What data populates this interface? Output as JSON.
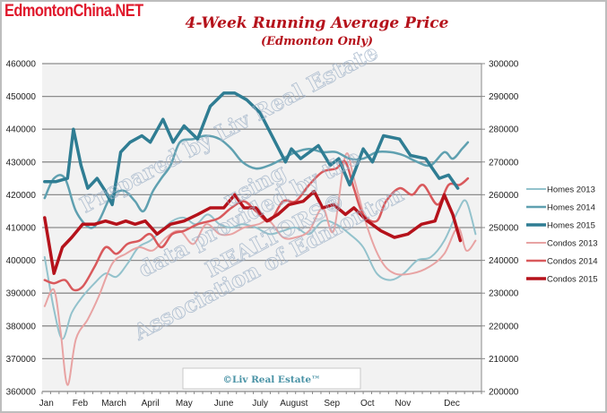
{
  "brand": "EdmontonChina.NET",
  "chart_data": {
    "type": "line",
    "title": "4-Week Running Average Price",
    "subtitle": "(Edmonton Only)",
    "xlabel": "",
    "x_unit": "week of year",
    "x_ticks": [
      "Jan",
      "Feb",
      "March",
      "April",
      "May",
      "June",
      "July",
      "August",
      "Sep",
      "Oct",
      "Nov",
      "Dec"
    ],
    "x_tick_weeks": [
      0.5,
      4.5,
      8.5,
      12.8,
      16.8,
      21.5,
      25.8,
      29.8,
      34.3,
      38.5,
      42.7,
      48.5
    ],
    "xlim": [
      0,
      52
    ],
    "y_left": {
      "ylim": [
        360000,
        460000
      ],
      "ticks": [
        "460000",
        "450000",
        "440000",
        "430000",
        "420000",
        "410000",
        "400000",
        "390000",
        "380000",
        "370000",
        "360000"
      ],
      "applies_to": "Homes"
    },
    "y_right": {
      "ylim": [
        200000,
        300000
      ],
      "ticks": [
        "300000",
        "290000",
        "280000",
        "270000",
        "260000",
        "250000",
        "240000",
        "230000",
        "220000",
        "210000",
        "200000"
      ],
      "applies_to": "Condos"
    },
    "grid": true,
    "legend_position": "right",
    "series": [
      {
        "name": "Homes 2013",
        "axis": "left",
        "color": "#93c2cc",
        "width": 2,
        "points": [
          [
            0.3,
            401000
          ],
          [
            1.4,
            385000
          ],
          [
            2.4,
            376000
          ],
          [
            3.5,
            384000
          ],
          [
            4.8,
            389000
          ],
          [
            6.2,
            393000
          ],
          [
            7.5,
            396000
          ],
          [
            8.8,
            395000
          ],
          [
            10.1,
            399000
          ],
          [
            11.4,
            404000
          ],
          [
            12.8,
            406000
          ],
          [
            14.1,
            409000
          ],
          [
            15.4,
            412000
          ],
          [
            16.8,
            413000
          ],
          [
            18.2,
            411000
          ],
          [
            19.6,
            414000
          ],
          [
            21.0,
            411000
          ],
          [
            22.4,
            410000
          ],
          [
            23.7,
            411000
          ],
          [
            25.3,
            410000
          ],
          [
            26.9,
            408000
          ],
          [
            28.5,
            409000
          ],
          [
            30.0,
            410000
          ],
          [
            31.6,
            408000
          ],
          [
            33.2,
            412000
          ],
          [
            34.8,
            411000
          ],
          [
            36.4,
            408000
          ],
          [
            38.0,
            404000
          ],
          [
            39.6,
            396000
          ],
          [
            41.2,
            394000
          ],
          [
            42.8,
            396000
          ],
          [
            44.4,
            400000
          ],
          [
            46.0,
            401000
          ],
          [
            47.6,
            406000
          ],
          [
            49.2,
            415000
          ],
          [
            50.2,
            418000
          ],
          [
            51.3,
            408000
          ]
        ]
      },
      {
        "name": "Homes 2014",
        "axis": "left",
        "color": "#5fa0b0",
        "width": 2.5,
        "points": [
          [
            0.3,
            419000
          ],
          [
            1.4,
            425000
          ],
          [
            2.7,
            425000
          ],
          [
            4.0,
            415000
          ],
          [
            5.6,
            410000
          ],
          [
            6.7,
            412000
          ],
          [
            8.0,
            419000
          ],
          [
            9.0,
            421000
          ],
          [
            9.9,
            421000
          ],
          [
            11.0,
            418000
          ],
          [
            12.0,
            415000
          ],
          [
            13.1,
            421000
          ],
          [
            14.1,
            425000
          ],
          [
            15.2,
            429000
          ],
          [
            16.3,
            436000
          ],
          [
            17.9,
            437000
          ],
          [
            19.4,
            438000
          ],
          [
            21.0,
            437000
          ],
          [
            22.4,
            434000
          ],
          [
            23.7,
            430000
          ],
          [
            25.3,
            428000
          ],
          [
            26.9,
            429000
          ],
          [
            28.5,
            431000
          ],
          [
            30.0,
            433000
          ],
          [
            31.6,
            434000
          ],
          [
            33.2,
            433000
          ],
          [
            34.8,
            433000
          ],
          [
            36.4,
            431000
          ],
          [
            38.0,
            431000
          ],
          [
            39.6,
            433000
          ],
          [
            41.2,
            433000
          ],
          [
            42.8,
            432000
          ],
          [
            44.4,
            430000
          ],
          [
            46.0,
            429000
          ],
          [
            47.6,
            433000
          ],
          [
            48.6,
            431000
          ],
          [
            49.7,
            434000
          ],
          [
            50.4,
            436000
          ]
        ]
      },
      {
        "name": "Homes 2015",
        "axis": "left",
        "color": "#2f7d93",
        "width": 3.5,
        "points": [
          [
            0.3,
            424000
          ],
          [
            1.6,
            424000
          ],
          [
            3.0,
            425000
          ],
          [
            3.7,
            440000
          ],
          [
            4.6,
            429000
          ],
          [
            5.4,
            422000
          ],
          [
            6.5,
            425000
          ],
          [
            7.5,
            421000
          ],
          [
            8.3,
            417000
          ],
          [
            9.3,
            433000
          ],
          [
            10.4,
            436000
          ],
          [
            11.8,
            438000
          ],
          [
            12.8,
            436000
          ],
          [
            14.3,
            443000
          ],
          [
            15.5,
            436000
          ],
          [
            16.8,
            441000
          ],
          [
            18.4,
            437000
          ],
          [
            19.9,
            447000
          ],
          [
            21.5,
            451000
          ],
          [
            22.8,
            451000
          ],
          [
            24.2,
            449000
          ],
          [
            25.8,
            445000
          ],
          [
            27.4,
            437000
          ],
          [
            28.8,
            430000
          ],
          [
            29.5,
            434000
          ],
          [
            30.6,
            431000
          ],
          [
            32.7,
            435000
          ],
          [
            34.1,
            429000
          ],
          [
            35.1,
            431000
          ],
          [
            36.4,
            423000
          ],
          [
            38.0,
            434000
          ],
          [
            39.1,
            430000
          ],
          [
            40.4,
            438000
          ],
          [
            42.3,
            437000
          ],
          [
            43.6,
            432000
          ],
          [
            45.4,
            431000
          ],
          [
            47.0,
            425000
          ],
          [
            48.1,
            426000
          ],
          [
            49.2,
            422000
          ]
        ]
      },
      {
        "name": "Condos 2013",
        "axis": "right",
        "color": "#e8a3a3",
        "width": 2,
        "points": [
          [
            0.3,
            226000
          ],
          [
            1.4,
            231000
          ],
          [
            2.2,
            218000
          ],
          [
            3.0,
            202000
          ],
          [
            4.0,
            216000
          ],
          [
            5.4,
            222000
          ],
          [
            6.7,
            229000
          ],
          [
            8.3,
            239000
          ],
          [
            9.9,
            242000
          ],
          [
            11.5,
            244000
          ],
          [
            13.1,
            243000
          ],
          [
            14.7,
            247000
          ],
          [
            16.3,
            249000
          ],
          [
            17.9,
            245000
          ],
          [
            19.4,
            251000
          ],
          [
            21.0,
            248000
          ],
          [
            22.4,
            248000
          ],
          [
            23.9,
            250000
          ],
          [
            25.6,
            251000
          ],
          [
            26.9,
            252000
          ],
          [
            28.5,
            247000
          ],
          [
            30.0,
            247000
          ],
          [
            31.6,
            249000
          ],
          [
            33.2,
            256000
          ],
          [
            34.5,
            249000
          ],
          [
            35.9,
            272000
          ],
          [
            36.9,
            265000
          ],
          [
            38.5,
            250000
          ],
          [
            40.1,
            240000
          ],
          [
            41.7,
            236000
          ],
          [
            43.8,
            236000
          ],
          [
            45.8,
            238000
          ],
          [
            47.6,
            242000
          ],
          [
            49.2,
            250000
          ],
          [
            50.2,
            243000
          ],
          [
            51.3,
            246000
          ]
        ]
      },
      {
        "name": "Condos 2014",
        "axis": "right",
        "color": "#d9595c",
        "width": 2.5,
        "points": [
          [
            0.3,
            234000
          ],
          [
            1.4,
            233000
          ],
          [
            2.7,
            234000
          ],
          [
            3.7,
            231000
          ],
          [
            4.8,
            232000
          ],
          [
            6.2,
            238000
          ],
          [
            7.5,
            244000
          ],
          [
            8.8,
            242000
          ],
          [
            10.1,
            245000
          ],
          [
            11.5,
            246000
          ],
          [
            12.8,
            248000
          ],
          [
            14.1,
            244000
          ],
          [
            15.4,
            248000
          ],
          [
            16.8,
            249000
          ],
          [
            18.4,
            251000
          ],
          [
            19.9,
            252000
          ],
          [
            21.0,
            253000
          ],
          [
            22.4,
            256000
          ],
          [
            23.9,
            258000
          ],
          [
            25.3,
            255000
          ],
          [
            26.9,
            252000
          ],
          [
            28.5,
            258000
          ],
          [
            30.0,
            258000
          ],
          [
            31.6,
            263000
          ],
          [
            33.2,
            267000
          ],
          [
            34.8,
            268000
          ],
          [
            35.9,
            270000
          ],
          [
            36.9,
            262000
          ],
          [
            38.0,
            254000
          ],
          [
            39.6,
            252000
          ],
          [
            40.7,
            258000
          ],
          [
            42.3,
            262000
          ],
          [
            43.8,
            260000
          ],
          [
            45.1,
            263000
          ],
          [
            46.8,
            257000
          ],
          [
            48.1,
            263000
          ],
          [
            49.4,
            263000
          ],
          [
            50.4,
            265000
          ]
        ]
      },
      {
        "name": "Condos 2015",
        "axis": "right",
        "color": "#b5121b",
        "width": 3.5,
        "points": [
          [
            0.3,
            253000
          ],
          [
            1.4,
            236000
          ],
          [
            2.4,
            244000
          ],
          [
            3.5,
            247000
          ],
          [
            4.8,
            251000
          ],
          [
            6.2,
            251000
          ],
          [
            7.5,
            252000
          ],
          [
            8.8,
            251000
          ],
          [
            9.9,
            252000
          ],
          [
            11.0,
            251000
          ],
          [
            12.2,
            252000
          ],
          [
            13.6,
            248000
          ],
          [
            15.2,
            251000
          ],
          [
            16.8,
            252000
          ],
          [
            18.4,
            254000
          ],
          [
            19.9,
            256000
          ],
          [
            21.5,
            256000
          ],
          [
            22.8,
            260000
          ],
          [
            23.9,
            256000
          ],
          [
            25.3,
            256000
          ],
          [
            26.6,
            252000
          ],
          [
            27.9,
            254000
          ],
          [
            29.2,
            257000
          ],
          [
            30.9,
            258000
          ],
          [
            32.2,
            261000
          ],
          [
            33.2,
            256000
          ],
          [
            34.5,
            257000
          ],
          [
            35.9,
            254000
          ],
          [
            36.9,
            256000
          ],
          [
            38.5,
            252000
          ],
          [
            40.1,
            249000
          ],
          [
            41.7,
            247000
          ],
          [
            43.3,
            248000
          ],
          [
            44.9,
            251000
          ],
          [
            46.5,
            252000
          ],
          [
            47.6,
            260000
          ],
          [
            48.6,
            254000
          ],
          [
            49.5,
            246000
          ]
        ]
      }
    ],
    "watermark_lines": [
      "Prepared by Liv Real Estate",
      "using",
      "data provided by the",
      "REALTORS®",
      "Association of Edmonton"
    ],
    "copyright": "©Liv Real Estate™"
  }
}
